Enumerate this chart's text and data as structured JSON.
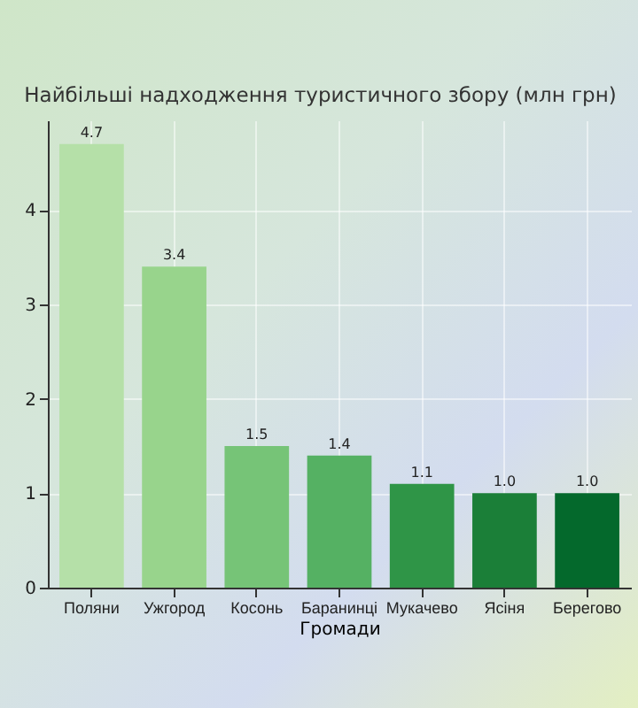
{
  "chart_data": {
    "type": "bar",
    "title": "Найбільші надходження туристичного збору (млн грн)",
    "xlabel": "Громади",
    "categories": [
      "Поляни",
      "Ужгород",
      "Косонь",
      "Баранинці",
      "Мукачево",
      "Ясіня",
      "Берегово"
    ],
    "values": [
      4.7,
      3.4,
      1.5,
      1.4,
      1.1,
      1.0,
      1.0
    ],
    "value_labels": [
      "4.7",
      "3.4",
      "1.5",
      "1.4",
      "1.1",
      "1.0",
      "1.0"
    ],
    "colors": [
      "#b5e0a8",
      "#98d48c",
      "#76c477",
      "#55b163",
      "#2f9547",
      "#1b7f38",
      "#04692c"
    ],
    "ylim": [
      0,
      4.95
    ],
    "yticks": [
      0,
      1,
      2,
      3,
      4
    ],
    "grid": true
  }
}
